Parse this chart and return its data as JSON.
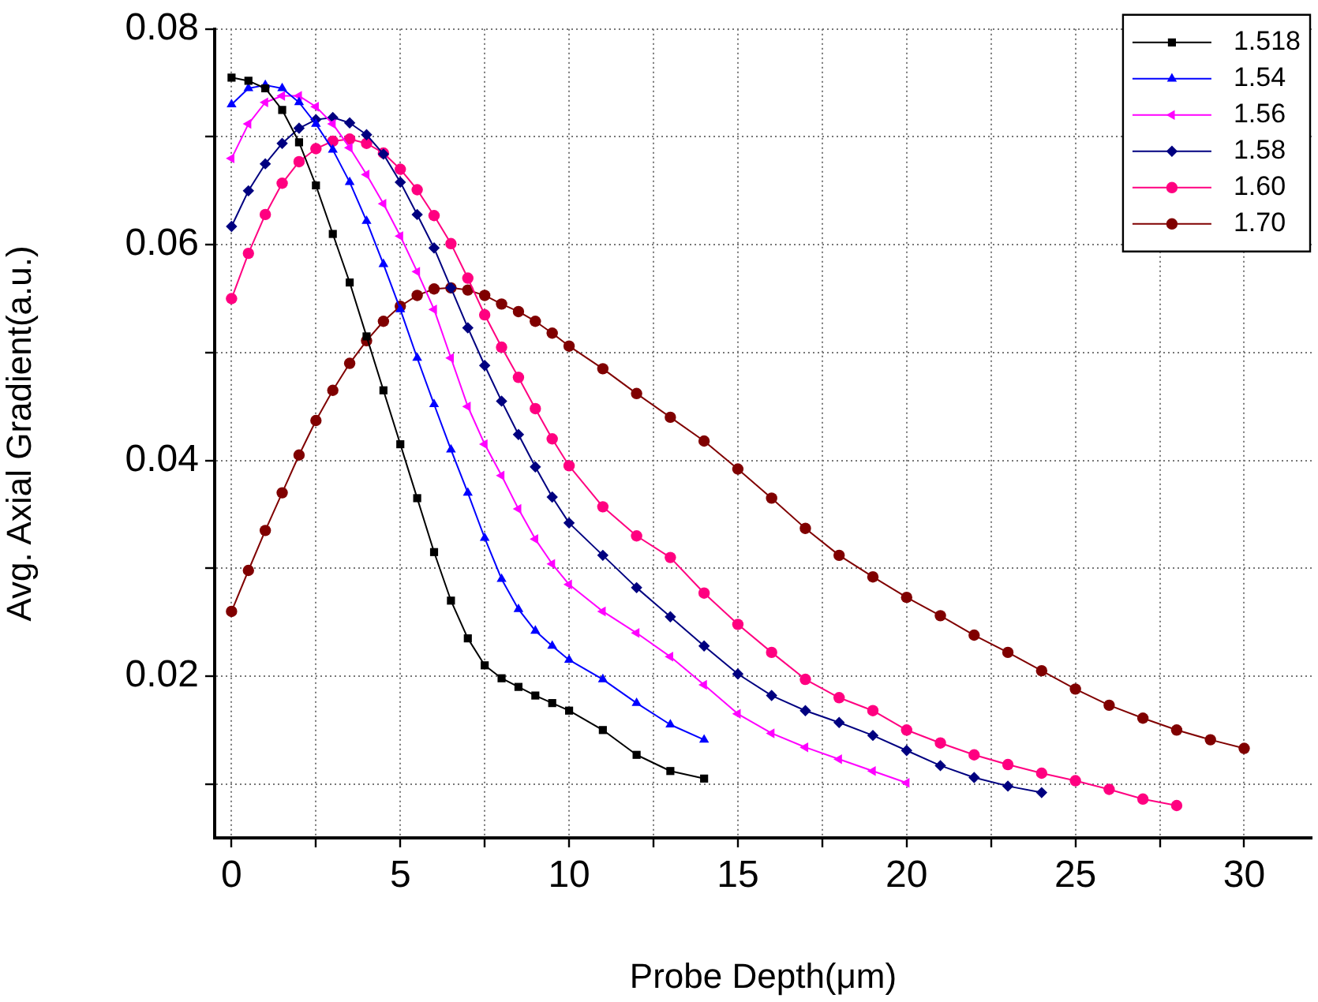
{
  "chart_data": {
    "type": "line",
    "xlabel": "Probe Depth(μm)",
    "ylabel": "Avg. Axial Gradient(a.u.)",
    "xlim": [
      -0.5,
      32
    ],
    "ylim": [
      0.005,
      0.08
    ],
    "xticks": [
      0,
      {
        "value": 2.5,
        "label": null
      },
      5,
      {
        "value": 7.5,
        "label": null
      },
      10,
      {
        "value": 12.5,
        "label": null
      },
      15,
      {
        "value": 17.5,
        "label": null
      },
      20,
      {
        "value": 22.5,
        "label": null
      },
      25,
      {
        "value": 27.5,
        "label": null
      },
      30
    ],
    "yticks": [
      {
        "value": 0.01,
        "label": null
      },
      0.02,
      {
        "value": 0.03,
        "label": null
      },
      0.04,
      {
        "value": 0.05,
        "label": null
      },
      0.06,
      {
        "value": 0.07,
        "label": null
      },
      0.08
    ],
    "grid": true,
    "legend": "top right",
    "line_style": "solid",
    "series": [
      {
        "name": "1.518",
        "color": "#000000",
        "marker": "square",
        "x": [
          0,
          0.5,
          1,
          1.5,
          2,
          2.5,
          3,
          3.5,
          4,
          4.5,
          5,
          5.5,
          6,
          6.5,
          7,
          7.5,
          8,
          8.5,
          9,
          9.5,
          10,
          11,
          12,
          13,
          14
        ],
        "values": [
          0.0755,
          0.0752,
          0.0745,
          0.0725,
          0.0695,
          0.0655,
          0.061,
          0.0565,
          0.0515,
          0.0465,
          0.0415,
          0.0365,
          0.0315,
          0.027,
          0.0235,
          0.021,
          0.0198,
          0.019,
          0.0182,
          0.0175,
          0.0168,
          0.015,
          0.0127,
          0.0112,
          0.0105
        ]
      },
      {
        "name": "1.54",
        "color": "#0000ff",
        "marker": "triangle",
        "x": [
          0,
          0.5,
          1,
          1.5,
          2,
          2.5,
          3,
          3.5,
          4,
          4.5,
          5,
          5.5,
          6,
          6.5,
          7,
          7.5,
          8,
          8.5,
          9,
          9.5,
          10,
          11,
          12,
          13,
          14
        ],
        "values": [
          0.073,
          0.0745,
          0.0748,
          0.0745,
          0.0732,
          0.0712,
          0.0688,
          0.0658,
          0.0622,
          0.0582,
          0.054,
          0.0495,
          0.0452,
          0.041,
          0.037,
          0.0328,
          0.029,
          0.0262,
          0.0242,
          0.0228,
          0.0215,
          0.0197,
          0.0175,
          0.0155,
          0.0141
        ]
      },
      {
        "name": "1.56",
        "color": "#ff00ff",
        "marker": "triangle-left",
        "x": [
          0,
          0.5,
          1,
          1.5,
          2,
          2.5,
          3,
          3.5,
          4,
          4.5,
          5,
          5.5,
          6,
          6.5,
          7,
          7.5,
          8,
          8.5,
          9,
          9.5,
          10,
          11,
          12,
          13,
          14,
          15,
          16,
          17,
          18,
          19,
          20
        ],
        "values": [
          0.068,
          0.0712,
          0.0732,
          0.0738,
          0.0738,
          0.0728,
          0.0712,
          0.069,
          0.0665,
          0.0638,
          0.0608,
          0.0575,
          0.054,
          0.0495,
          0.045,
          0.0415,
          0.0386,
          0.0355,
          0.0327,
          0.0304,
          0.0285,
          0.026,
          0.024,
          0.0218,
          0.0192,
          0.0165,
          0.0147,
          0.0134,
          0.0123,
          0.0112,
          0.0101
        ]
      },
      {
        "name": "1.58",
        "color": "#000080",
        "marker": "diamond",
        "x": [
          0,
          0.5,
          1,
          1.5,
          2,
          2.5,
          3,
          3.5,
          4,
          4.5,
          5,
          5.5,
          6,
          6.5,
          7,
          7.5,
          8,
          8.5,
          9,
          9.5,
          10,
          11,
          12,
          13,
          14,
          15,
          16,
          17,
          18,
          19,
          20,
          21,
          22,
          23,
          24
        ],
        "values": [
          0.0617,
          0.065,
          0.0675,
          0.0694,
          0.0708,
          0.0716,
          0.0718,
          0.0713,
          0.0702,
          0.0684,
          0.0658,
          0.0628,
          0.0597,
          0.056,
          0.0523,
          0.0488,
          0.0455,
          0.0424,
          0.0394,
          0.0366,
          0.0342,
          0.0312,
          0.0282,
          0.0255,
          0.0228,
          0.0202,
          0.0182,
          0.0168,
          0.0157,
          0.0145,
          0.0131,
          0.0117,
          0.0106,
          0.0098,
          0.0092
        ]
      },
      {
        "name": "1.60",
        "color": "#ff0080",
        "marker": "circle",
        "x": [
          0,
          0.5,
          1,
          1.5,
          2,
          2.5,
          3,
          3.5,
          4,
          4.5,
          5,
          5.5,
          6,
          6.5,
          7,
          7.5,
          8,
          8.5,
          9,
          9.5,
          10,
          11,
          12,
          13,
          14,
          15,
          16,
          17,
          18,
          19,
          20,
          21,
          22,
          23,
          24,
          25,
          26,
          27,
          28
        ],
        "values": [
          0.055,
          0.0592,
          0.0628,
          0.0657,
          0.0677,
          0.0689,
          0.0696,
          0.0698,
          0.0694,
          0.0685,
          0.067,
          0.0651,
          0.0627,
          0.0601,
          0.0569,
          0.0535,
          0.0505,
          0.0477,
          0.0448,
          0.042,
          0.0395,
          0.0357,
          0.033,
          0.031,
          0.0277,
          0.0248,
          0.0222,
          0.0197,
          0.018,
          0.0168,
          0.015,
          0.0138,
          0.0127,
          0.0118,
          0.011,
          0.0103,
          0.0095,
          0.0086,
          0.008
        ]
      },
      {
        "name": "1.70",
        "color": "#800000",
        "marker": "circle",
        "x": [
          0,
          0.5,
          1,
          1.5,
          2,
          2.5,
          3,
          3.5,
          4,
          4.5,
          5,
          5.5,
          6,
          6.5,
          7,
          7.5,
          8,
          8.5,
          9,
          9.5,
          10,
          11,
          12,
          13,
          14,
          15,
          16,
          17,
          18,
          19,
          20,
          21,
          22,
          23,
          24,
          25,
          26,
          27,
          28,
          29,
          30
        ],
        "values": [
          0.026,
          0.0298,
          0.0335,
          0.037,
          0.0405,
          0.0437,
          0.0465,
          0.049,
          0.0511,
          0.0529,
          0.0543,
          0.0553,
          0.0559,
          0.056,
          0.0558,
          0.0553,
          0.0545,
          0.0538,
          0.0529,
          0.0518,
          0.0506,
          0.0485,
          0.0462,
          0.044,
          0.0418,
          0.0392,
          0.0365,
          0.0337,
          0.0312,
          0.0292,
          0.0273,
          0.0256,
          0.0238,
          0.0222,
          0.0205,
          0.0188,
          0.0173,
          0.0161,
          0.015,
          0.0141,
          0.0133
        ]
      }
    ]
  }
}
